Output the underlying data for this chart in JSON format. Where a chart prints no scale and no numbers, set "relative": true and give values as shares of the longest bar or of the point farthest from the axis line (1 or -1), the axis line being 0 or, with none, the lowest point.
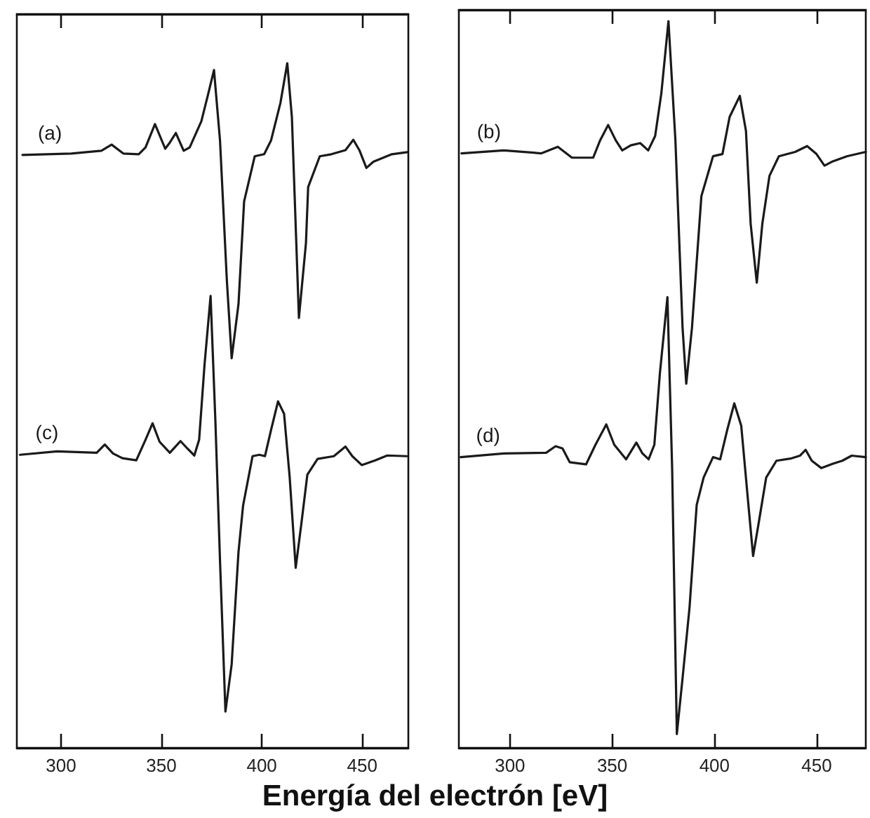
{
  "chart_data": [
    {
      "type": "line",
      "xlabel": "Energía del electrón [eV]",
      "xlim": [
        278,
        473
      ],
      "xticks": [
        300,
        350,
        400,
        450
      ],
      "relative": true,
      "tick_labels": "x",
      "series": [
        {
          "name": "(a)",
          "color": "#1a1a1a",
          "x": [
            280.8,
            305.1,
            320.1,
            325.2,
            331.0,
            338.7,
            342.1,
            346.8,
            351.9,
            354.2,
            357.2,
            361.1,
            364.1,
            369.9,
            373.4,
            376.2,
            379.2,
            382.6,
            385.0,
            388.4,
            391.2,
            396.5,
            401.2,
            404.6,
            409.3,
            412.7,
            415.0,
            418.5,
            422.0,
            423.1,
            428.9,
            434.7,
            441.7,
            445.6,
            448.6,
            452.1,
            455.6,
            464.8,
            472.5
          ],
          "values": [
            0.866,
            0.868,
            0.872,
            0.881,
            0.868,
            0.867,
            0.877,
            0.911,
            0.875,
            0.884,
            0.898,
            0.872,
            0.877,
            0.915,
            0.956,
            0.99,
            0.887,
            0.683,
            0.569,
            0.648,
            0.798,
            0.864,
            0.867,
            0.887,
            0.942,
            1.0,
            0.921,
            0.628,
            0.737,
            0.819,
            0.864,
            0.867,
            0.873,
            0.888,
            0.873,
            0.847,
            0.856,
            0.867,
            0.87
          ]
        },
        {
          "name": "(c)",
          "color": "#1a1a1a",
          "x": [
            279.6,
            298.1,
            317.8,
            321.8,
            325.9,
            330.6,
            337.5,
            342.1,
            345.6,
            349.1,
            354.2,
            359.5,
            363.0,
            366.4,
            368.8,
            371.5,
            374.5,
            376.9,
            379.2,
            381.9,
            385.0,
            388.4,
            390.7,
            395.4,
            398.8,
            401.6,
            404.6,
            408.1,
            411.1,
            413.9,
            416.9,
            419.7,
            422.7,
            427.8,
            435.9,
            441.7,
            445.1,
            449.8,
            456.7,
            462.5,
            472.2
          ],
          "values": [
            0.428,
            0.433,
            0.431,
            0.443,
            0.43,
            0.423,
            0.42,
            0.45,
            0.474,
            0.447,
            0.431,
            0.448,
            0.437,
            0.427,
            0.45,
            0.56,
            0.66,
            0.477,
            0.273,
            0.053,
            0.122,
            0.286,
            0.354,
            0.426,
            0.428,
            0.426,
            0.464,
            0.506,
            0.488,
            0.395,
            0.263,
            0.327,
            0.399,
            0.422,
            0.426,
            0.44,
            0.426,
            0.413,
            0.42,
            0.427,
            0.426
          ]
        }
      ]
    },
    {
      "type": "line",
      "xlim": [
        275,
        474
      ],
      "xticks": [
        300,
        350,
        400,
        450
      ],
      "relative": true,
      "tick_labels": "x",
      "series": [
        {
          "name": "(b)",
          "color": "#1a1a1a",
          "x": [
            276.3,
            297.0,
            315.4,
            323.4,
            330.3,
            340.7,
            344.1,
            348.0,
            351.7,
            354.9,
            359.1,
            363.7,
            367.6,
            371.0,
            374.0,
            377.5,
            380.9,
            384.4,
            386.2,
            389.0,
            393.6,
            399.3,
            403.9,
            407.4,
            412.4,
            415.4,
            417.7,
            420.7,
            423.4,
            426.9,
            431.5,
            439.5,
            445.3,
            449.9,
            453.8,
            457.9,
            464.8,
            474.0
          ],
          "values": [
            0.818,
            0.822,
            0.818,
            0.827,
            0.812,
            0.812,
            0.836,
            0.857,
            0.836,
            0.822,
            0.829,
            0.832,
            0.822,
            0.842,
            0.9,
            1.0,
            0.836,
            0.578,
            0.501,
            0.578,
            0.759,
            0.814,
            0.817,
            0.868,
            0.897,
            0.849,
            0.721,
            0.64,
            0.721,
            0.787,
            0.814,
            0.82,
            0.828,
            0.817,
            0.801,
            0.807,
            0.814,
            0.82
          ]
        },
        {
          "name": "(d)",
          "color": "#1a1a1a",
          "x": [
            275.9,
            297.0,
            317.7,
            322.3,
            325.7,
            329.2,
            337.2,
            341.8,
            347.1,
            351.0,
            356.8,
            361.8,
            364.8,
            367.8,
            370.6,
            373.3,
            377.0,
            379.3,
            381.6,
            384.4,
            387.8,
            391.3,
            394.7,
            399.3,
            402.8,
            406.2,
            409.7,
            413.1,
            416.6,
            418.9,
            421.6,
            425.3,
            430.3,
            437.2,
            441.8,
            444.6,
            447.6,
            452.2,
            457.9,
            462.5,
            467.1,
            474.0
          ],
          "values": [
            0.4,
            0.405,
            0.406,
            0.415,
            0.412,
            0.393,
            0.39,
            0.417,
            0.445,
            0.417,
            0.397,
            0.42,
            0.405,
            0.397,
            0.417,
            0.515,
            0.62,
            0.385,
            0.019,
            0.096,
            0.193,
            0.334,
            0.372,
            0.4,
            0.397,
            0.437,
            0.474,
            0.443,
            0.334,
            0.264,
            0.309,
            0.372,
            0.395,
            0.398,
            0.402,
            0.41,
            0.395,
            0.385,
            0.391,
            0.395,
            0.402,
            0.4
          ]
        }
      ]
    }
  ]
}
